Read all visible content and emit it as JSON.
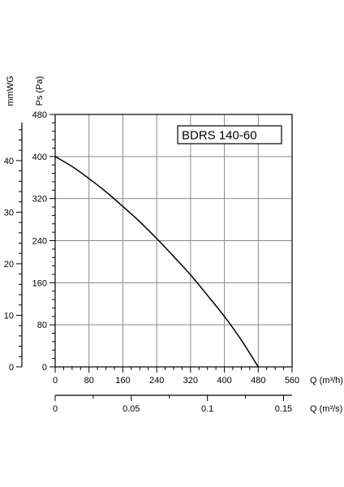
{
  "chart_data": {
    "type": "line",
    "title": "BDRS 140-60",
    "x_axis": {
      "label": "Q (m³/h)",
      "range": [
        0,
        560
      ],
      "ticks": [
        0,
        80,
        160,
        240,
        320,
        400,
        480,
        560
      ],
      "minor_step": 20
    },
    "x_axis_secondary": {
      "label": "Q (m³/s)",
      "range": [
        0,
        0.1556
      ],
      "ticks": [
        0,
        0.05,
        0.1,
        0.15
      ],
      "tick_labels": [
        "0",
        "0.05",
        "0.1",
        "0.15"
      ],
      "minor_step": 0.025
    },
    "y_axis": {
      "label": "Ps (Pa)",
      "range": [
        0,
        480
      ],
      "ticks": [
        0,
        80,
        160,
        240,
        320,
        400,
        480
      ],
      "minor_step": 16
    },
    "y_axis_secondary": {
      "label": "mmWG",
      "range": [
        0,
        48.95
      ],
      "ticks": [
        0,
        10,
        20,
        30,
        40
      ],
      "minor_step": 2
    },
    "grid": true,
    "series": [
      {
        "x": [
          0,
          40,
          80,
          120,
          160,
          200,
          240,
          280,
          320,
          360,
          400,
          440,
          480
        ],
        "y": [
          400,
          381,
          358,
          333,
          305,
          276,
          244,
          210,
          175,
          136,
          96,
          51,
          0
        ]
      }
    ]
  }
}
